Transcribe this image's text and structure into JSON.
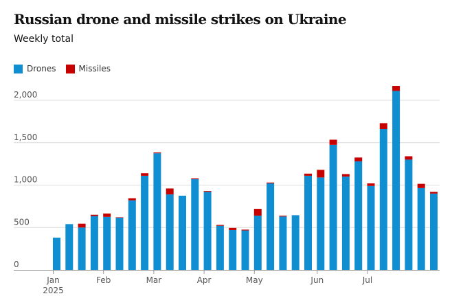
{
  "title": "Russian drone and missile strikes on Ukraine",
  "subtitle": "Weekly total",
  "legend": [
    {
      "label": "Drones",
      "color": "#0f8fd2"
    },
    {
      "label": "Missiles",
      "color": "#c70000"
    }
  ],
  "chart_data": {
    "type": "bar",
    "stacked": true,
    "ylim": [
      0,
      2200
    ],
    "yticks": [
      0,
      500,
      1000,
      1500,
      2000
    ],
    "ytick_labels": [
      "0",
      "500",
      "1,000",
      "1,500",
      "2,000"
    ],
    "grid": true,
    "legend_position": "top-left",
    "xtick_labels": [
      {
        "label": "Jan",
        "sub": "2025",
        "at": 0
      },
      {
        "label": "Feb",
        "sub": "",
        "at": 4
      },
      {
        "label": "Mar",
        "sub": "",
        "at": 8
      },
      {
        "label": "Apr",
        "sub": "",
        "at": 12
      },
      {
        "label": "May",
        "sub": "",
        "at": 16
      },
      {
        "label": "Jun",
        "sub": "",
        "at": 21
      },
      {
        "label": "Jul",
        "sub": "",
        "at": 25
      }
    ],
    "series": [
      {
        "name": "Drones",
        "color": "#0f8fd2",
        "values": [
          380,
          540,
          500,
          635,
          625,
          615,
          820,
          1110,
          1375,
          890,
          875,
          1070,
          920,
          520,
          470,
          465,
          640,
          1020,
          630,
          645,
          1110,
          1090,
          1475,
          1100,
          1280,
          990,
          1660,
          2110,
          1300,
          965,
          900
        ]
      },
      {
        "name": "Missiles",
        "color": "#c70000",
        "values": [
          0,
          0,
          45,
          15,
          40,
          5,
          25,
          30,
          10,
          70,
          0,
          10,
          10,
          10,
          25,
          10,
          80,
          10,
          10,
          0,
          25,
          90,
          60,
          30,
          45,
          30,
          70,
          60,
          40,
          50,
          20
        ]
      }
    ]
  }
}
